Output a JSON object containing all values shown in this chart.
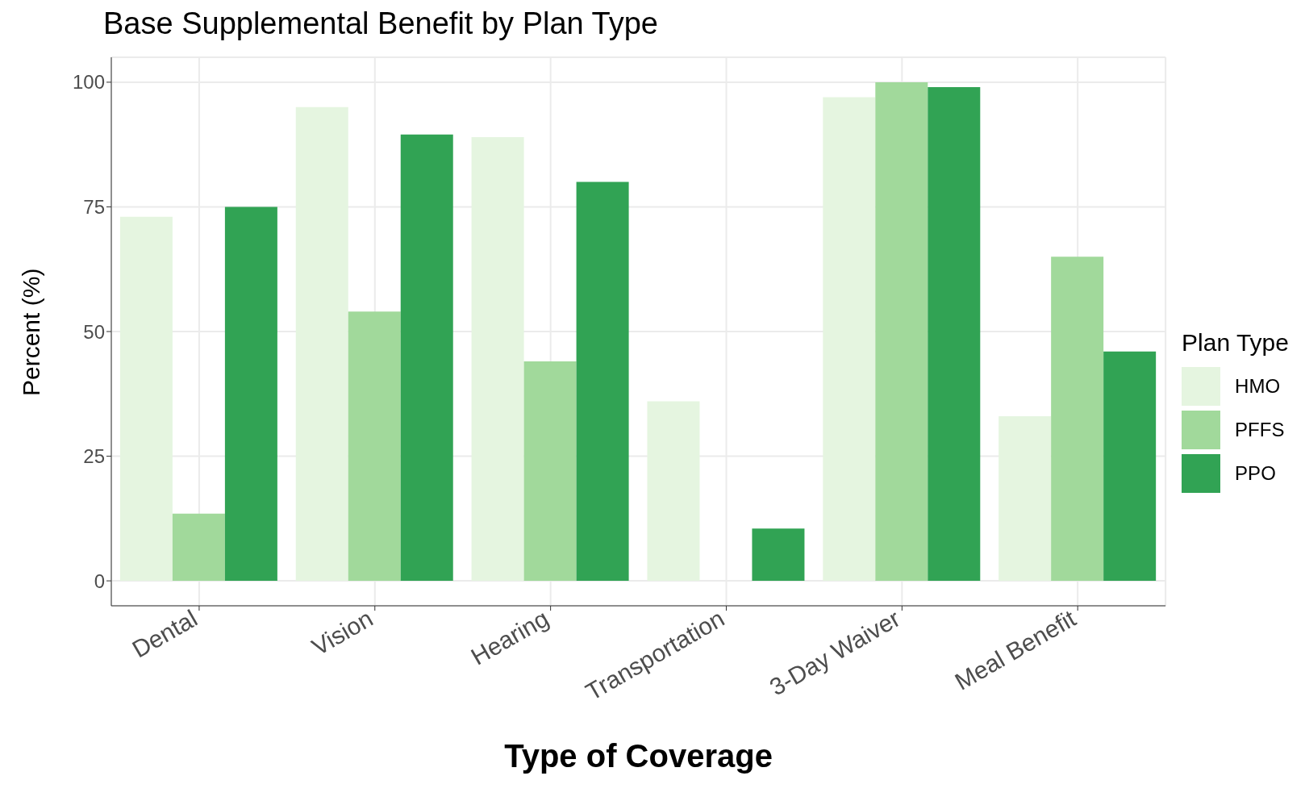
{
  "chart_data": {
    "type": "bar",
    "title": "Base Supplemental Benefit by Plan Type",
    "xlabel": "Type of Coverage",
    "ylabel": "Percent (%)",
    "legend_title": "Plan Type",
    "categories": [
      "Dental",
      "Vision",
      "Hearing",
      "Transportation",
      "3-Day Waiver",
      "Meal Benefit"
    ],
    "series": [
      {
        "name": "HMO",
        "color": "#e5f5e0",
        "values": [
          73,
          95,
          89,
          36,
          97,
          33
        ]
      },
      {
        "name": "PFFS",
        "color": "#a1d99b",
        "values": [
          13.5,
          54,
          44,
          0,
          100,
          65
        ]
      },
      {
        "name": "PPO",
        "color": "#31a354",
        "values": [
          75,
          89.5,
          80,
          10.5,
          99,
          46
        ]
      }
    ],
    "ylim": [
      -5,
      105
    ],
    "yticks": [
      0,
      25,
      50,
      75,
      100
    ],
    "grid": true,
    "legend": "right"
  }
}
